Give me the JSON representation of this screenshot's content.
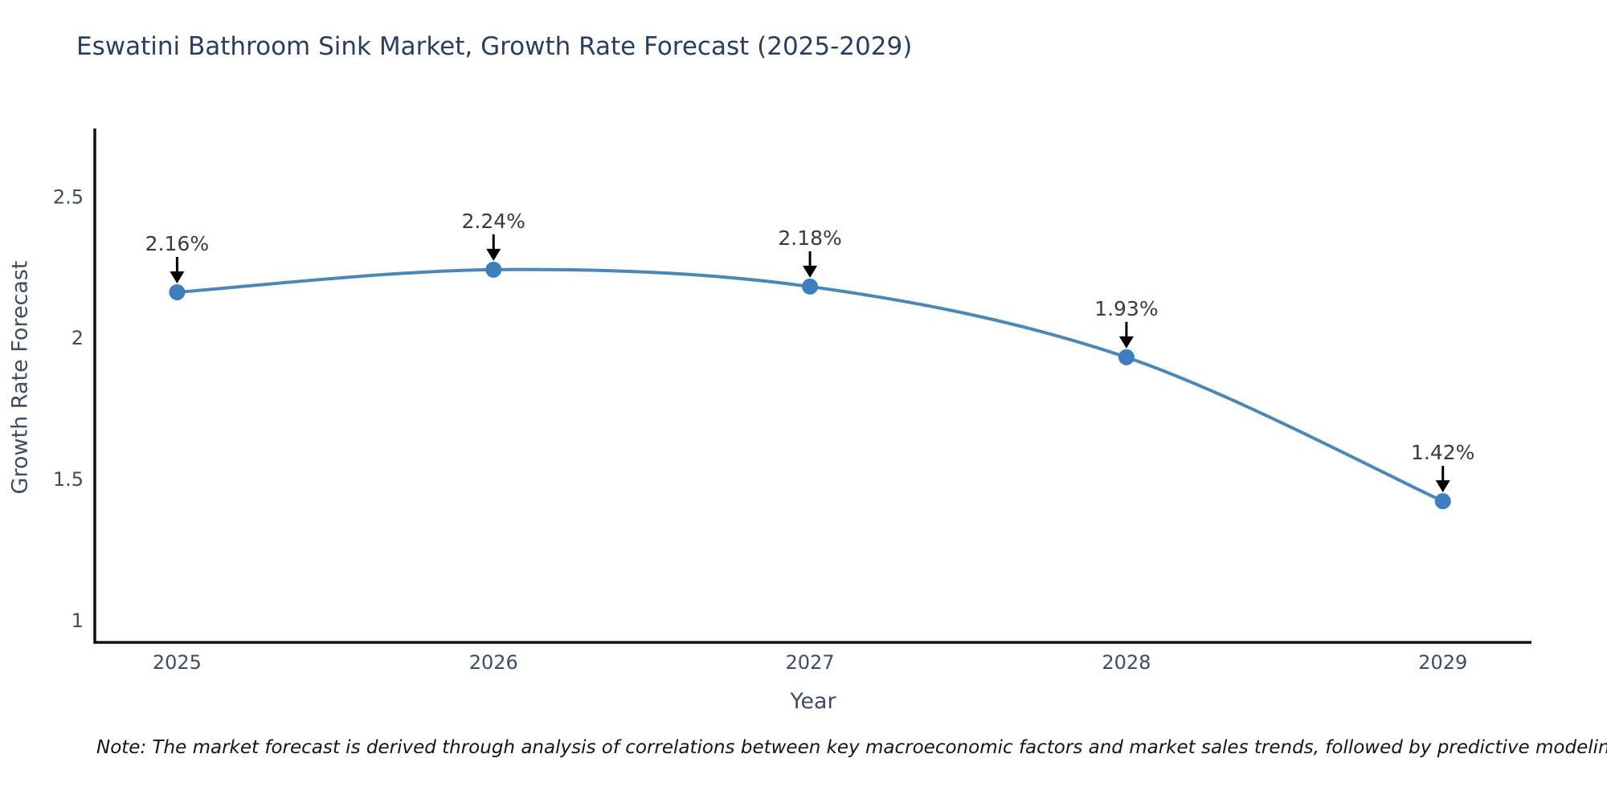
{
  "title": "Eswatini Bathroom Sink Market, Growth Rate Forecast (2025-2029)",
  "note": "Note: The market forecast is derived through analysis of correlations between key macroeconomic factors and market sales trends, followed by predictive modeling to project future sales",
  "chart_data": {
    "type": "line",
    "title": "Eswatini Bathroom Sink Market, Growth Rate Forecast (2025-2029)",
    "xlabel": "Year",
    "ylabel": "Growth Rate Forecast",
    "x": [
      2025,
      2026,
      2027,
      2028,
      2029
    ],
    "series": [
      {
        "name": "Growth Rate Forecast",
        "values": [
          2.16,
          2.24,
          2.18,
          1.93,
          1.42
        ]
      }
    ],
    "point_labels": [
      "2.16%",
      "2.24%",
      "2.18%",
      "1.93%",
      "1.42%"
    ],
    "xtick_labels": [
      "2025",
      "2026",
      "2027",
      "2028",
      "2029"
    ],
    "ytick_values": [
      1,
      1.5,
      2,
      2.5
    ],
    "ytick_labels": [
      "1",
      "1.5",
      "2",
      "2.5"
    ],
    "xlim": [
      2024.74,
      2029.28
    ],
    "ylim": [
      0.92,
      2.74
    ],
    "grid": false,
    "legend": "none",
    "line_shape": "spline",
    "marker": "circle",
    "annotation_arrows": true,
    "colors": {
      "line": "#4b87b8",
      "marker": "#3d7ebf",
      "annotation_text": "#3a3a3a",
      "arrow": "#000000",
      "spine": "#111111",
      "tick_label": "#3e4e60",
      "axis_label": "#3e4e60",
      "title": "#2a3f5f",
      "note_text": "#151515",
      "background": "#ffffff"
    }
  }
}
